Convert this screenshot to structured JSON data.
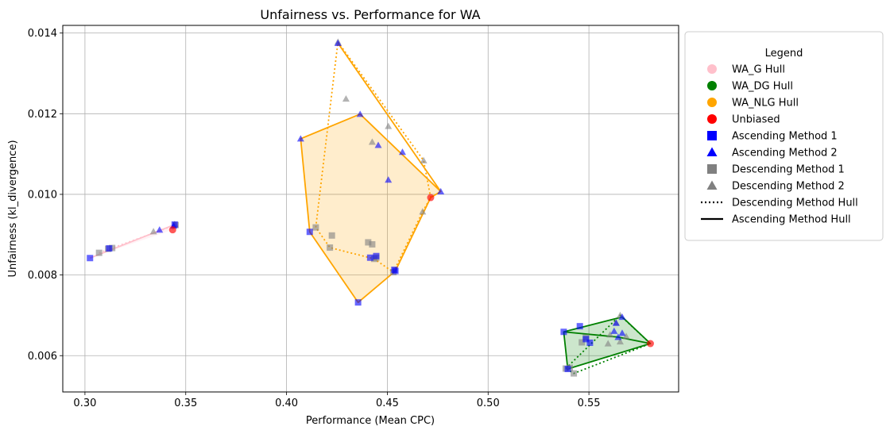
{
  "chart_data": {
    "type": "scatter",
    "title": "Unfairness vs. Performance for WA",
    "xlabel": "Performance (Mean CPC)",
    "ylabel": "Unfairness (kl_divergence)",
    "xlim": [
      0.289,
      0.5945
    ],
    "ylim": [
      0.0051,
      0.01419
    ],
    "xticks": [
      0.3,
      0.35,
      0.4,
      0.45,
      0.5,
      0.55
    ],
    "xtick_labels": [
      "0.30",
      "0.35",
      "0.40",
      "0.45",
      "0.50",
      "0.55"
    ],
    "yticks": [
      0.006,
      0.008,
      0.01,
      0.012,
      0.014
    ],
    "ytick_labels": [
      "0.006",
      "0.008",
      "0.010",
      "0.012",
      "0.014"
    ],
    "grid": true,
    "legend": {
      "title": "Legend",
      "placement": "outside-right",
      "entries": [
        {
          "label": "WA_G Hull",
          "marker": "circle",
          "color": "#ffc0cb"
        },
        {
          "label": "WA_DG Hull",
          "marker": "circle",
          "color": "#008000"
        },
        {
          "label": "WA_NLG Hull",
          "marker": "circle",
          "color": "#ffa500"
        },
        {
          "label": "Unbiased",
          "marker": "circle",
          "color": "#ff0000"
        },
        {
          "label": "Ascending Method 1",
          "marker": "square",
          "color": "#0000ff"
        },
        {
          "label": "Ascending Method 2",
          "marker": "triangle",
          "color": "#0000ff"
        },
        {
          "label": "Descending Method 1",
          "marker": "square",
          "color": "#808080"
        },
        {
          "label": "Descending Method 2",
          "marker": "triangle",
          "color": "#808080"
        },
        {
          "label": "Descending Method Hull",
          "marker": "dotted-line",
          "color": "#000000"
        },
        {
          "label": "Ascending Method Hull",
          "marker": "solid-line",
          "color": "#000000"
        }
      ]
    },
    "groups": [
      {
        "name": "WA_G",
        "color": "#ffc0cb",
        "unbiased": [
          [
            0.3435,
            0.00912
          ]
        ],
        "asc_m1": [
          [
            0.3025,
            0.00842
          ],
          [
            0.312,
            0.00866
          ],
          [
            0.3445,
            0.00925
          ]
        ],
        "asc_m2": [
          [
            0.337,
            0.00912
          ],
          [
            0.344,
            0.00922
          ]
        ],
        "desc_m1": [
          [
            0.307,
            0.00855
          ],
          [
            0.3115,
            0.00865
          ],
          [
            0.3135,
            0.00867
          ],
          [
            0.345,
            0.00924
          ]
        ],
        "desc_m2": [
          [
            0.334,
            0.00908
          ],
          [
            0.3445,
            0.00926
          ]
        ],
        "asc_hull": [
          [
            0.3025,
            0.00842
          ],
          [
            0.3445,
            0.00925
          ],
          [
            0.3435,
            0.00912
          ]
        ],
        "desc_hull": [
          [
            0.307,
            0.00855
          ],
          [
            0.345,
            0.00924
          ],
          [
            0.3435,
            0.00912
          ]
        ]
      },
      {
        "name": "WA_NLG",
        "color": "#ffa500",
        "unbiased": [
          [
            0.4715,
            0.00992
          ]
        ],
        "asc_m1": [
          [
            0.4115,
            0.00907
          ],
          [
            0.4355,
            0.00732
          ],
          [
            0.4415,
            0.00843
          ],
          [
            0.4445,
            0.00847
          ],
          [
            0.4535,
            0.00813
          ],
          [
            0.454,
            0.0081
          ]
        ],
        "asc_m2": [
          [
            0.407,
            0.01138
          ],
          [
            0.4365,
            0.01199
          ],
          [
            0.4455,
            0.01122
          ],
          [
            0.4505,
            0.01036
          ],
          [
            0.4575,
            0.01105
          ],
          [
            0.4765,
            0.01007
          ],
          [
            0.4255,
            0.01375
          ]
        ],
        "desc_m1": [
          [
            0.4145,
            0.00918
          ],
          [
            0.4215,
            0.00868
          ],
          [
            0.4225,
            0.00898
          ],
          [
            0.4405,
            0.00881
          ],
          [
            0.4425,
            0.00876
          ],
          [
            0.4435,
            0.0084
          ],
          [
            0.4445,
            0.00843
          ],
          [
            0.453,
            0.00807
          ]
        ],
        "desc_m2": [
          [
            0.4255,
            0.01378
          ],
          [
            0.4295,
            0.01237
          ],
          [
            0.4425,
            0.0113
          ],
          [
            0.4505,
            0.01169
          ],
          [
            0.468,
            0.01084
          ],
          [
            0.4675,
            0.00957
          ]
        ],
        "asc_hull": [
          [
            0.4255,
            0.01375
          ],
          [
            0.4765,
            0.01007
          ],
          [
            0.4715,
            0.00992
          ],
          [
            0.454,
            0.0081
          ],
          [
            0.4355,
            0.00732
          ],
          [
            0.4115,
            0.00907
          ],
          [
            0.407,
            0.01138
          ],
          [
            0.4365,
            0.01199
          ],
          [
            0.4765,
            0.01007
          ]
        ],
        "desc_hull": [
          [
            0.4255,
            0.01378
          ],
          [
            0.468,
            0.01084
          ],
          [
            0.4715,
            0.00992
          ],
          [
            0.4675,
            0.00957
          ],
          [
            0.453,
            0.00807
          ],
          [
            0.4435,
            0.0084
          ],
          [
            0.4215,
            0.00868
          ],
          [
            0.4145,
            0.00918
          ],
          [
            0.4255,
            0.01378
          ]
        ]
      },
      {
        "name": "WA_DG",
        "color": "#008000",
        "unbiased": [
          [
            0.5805,
            0.0063
          ]
        ],
        "asc_m1": [
          [
            0.5375,
            0.00659
          ],
          [
            0.5455,
            0.00673
          ],
          [
            0.5485,
            0.00641
          ],
          [
            0.5505,
            0.00632
          ],
          [
            0.5395,
            0.00567
          ]
        ],
        "asc_m2": [
          [
            0.5625,
            0.00661
          ],
          [
            0.5635,
            0.00681
          ],
          [
            0.5645,
            0.00646
          ],
          [
            0.5665,
            0.00656
          ],
          [
            0.5665,
            0.00696
          ]
        ],
        "desc_m1": [
          [
            0.5385,
            0.00568
          ],
          [
            0.5405,
            0.0057
          ],
          [
            0.5425,
            0.00556
          ],
          [
            0.5465,
            0.00633
          ],
          [
            0.5485,
            0.00645
          ]
        ],
        "desc_m2": [
          [
            0.5655,
            0.007
          ],
          [
            0.5595,
            0.0063
          ],
          [
            0.5605,
            0.00652
          ],
          [
            0.5635,
            0.00682
          ],
          [
            0.5655,
            0.00635
          ],
          [
            0.5685,
            0.00648
          ]
        ],
        "asc_hull": [
          [
            0.5375,
            0.00659
          ],
          [
            0.5665,
            0.00696
          ],
          [
            0.5805,
            0.0063
          ],
          [
            0.5395,
            0.00567
          ],
          [
            0.5375,
            0.00659
          ],
          [
            0.5645,
            0.00646
          ],
          [
            0.5805,
            0.0063
          ]
        ],
        "desc_hull": [
          [
            0.5385,
            0.00568
          ],
          [
            0.5655,
            0.007
          ],
          [
            0.5805,
            0.0063
          ],
          [
            0.5425,
            0.00556
          ],
          [
            0.5385,
            0.00568
          ]
        ]
      }
    ]
  }
}
